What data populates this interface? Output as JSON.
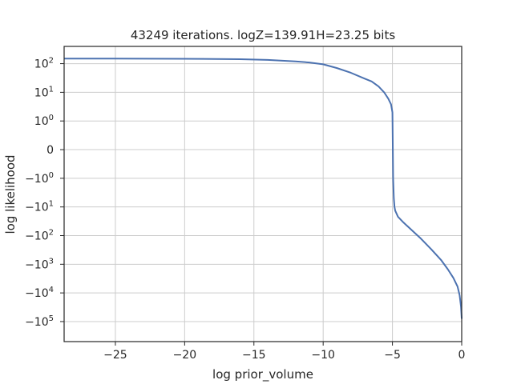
{
  "chart_data": {
    "type": "line",
    "title": "43249 iterations. logZ=139.91H=23.25 bits",
    "xlabel": "log prior_volume",
    "ylabel": "log likelihood",
    "xlim": [
      -28.7,
      0
    ],
    "yscale": "symlog",
    "ylim": [
      -500000,
      400
    ],
    "grid": true,
    "legend": "none",
    "line_color": "#4c72b0",
    "x_ticks": [
      {
        "value": -25,
        "label": "−25"
      },
      {
        "value": -20,
        "label": "−20"
      },
      {
        "value": -15,
        "label": "−15"
      },
      {
        "value": -10,
        "label": "−10"
      },
      {
        "value": -5,
        "label": "−5"
      },
      {
        "value": 0,
        "label": "0"
      }
    ],
    "y_ticks": [
      {
        "value": 100,
        "base": "10",
        "exp": "2",
        "neg": false
      },
      {
        "value": 10,
        "base": "10",
        "exp": "1",
        "neg": false
      },
      {
        "value": 1,
        "base": "10",
        "exp": "0",
        "neg": false
      },
      {
        "value": 0,
        "base": "0",
        "exp": "",
        "neg": false
      },
      {
        "value": -1,
        "base": "10",
        "exp": "0",
        "neg": true
      },
      {
        "value": -10,
        "base": "10",
        "exp": "1",
        "neg": true
      },
      {
        "value": -100,
        "base": "10",
        "exp": "2",
        "neg": true
      },
      {
        "value": -1000,
        "base": "10",
        "exp": "3",
        "neg": true
      },
      {
        "value": -10000,
        "base": "10",
        "exp": "4",
        "neg": true
      },
      {
        "value": -100000,
        "base": "10",
        "exp": "5",
        "neg": true
      }
    ],
    "series": [
      {
        "x": [
          -28.7,
          -25,
          -20,
          -16,
          -14,
          -12,
          -11,
          -10,
          -9,
          -8,
          -7,
          -6.5,
          -6,
          -5.6,
          -5.3,
          -5.1,
          -5.0,
          -4.95,
          -4.9,
          -4.85,
          -4.8,
          -4.6,
          -4.2,
          -3.6,
          -3,
          -2.2,
          -1.5,
          -1.0,
          -0.6,
          -0.3,
          -0.15,
          -0.05,
          0
        ],
        "y": [
          150,
          150,
          148,
          143,
          135,
          120,
          110,
          95,
          70,
          48,
          30,
          24,
          16,
          10,
          6,
          3.8,
          2,
          -1,
          -5,
          -10,
          -13.5,
          -22,
          -35,
          -65,
          -120,
          -300,
          -700,
          -1500,
          -3000,
          -6000,
          -12000,
          -30000,
          -80000
        ]
      }
    ]
  }
}
